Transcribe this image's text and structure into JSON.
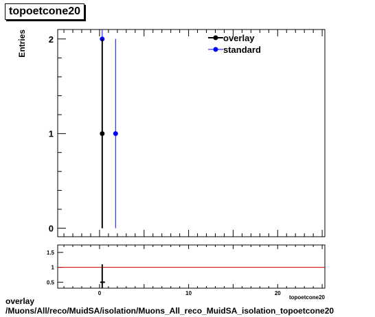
{
  "title": "topoetcone20",
  "footer": {
    "line1": "overlay",
    "line2": "/Muons/All/reco/MuidSA/isolation/Muons_All_reco_MuidSA_isolation_topoetcone20"
  },
  "colors": {
    "overlay": "#000000",
    "standard": "#0000ff",
    "ratio_line": "#cc0000"
  },
  "chart_data": [
    {
      "type": "scatter",
      "title": "topoetcone20",
      "ylabel": "Entries",
      "xlabel": "topoetcone20",
      "xlim": [
        -4.7,
        25.3
      ],
      "ylim": [
        -0.09,
        2.1
      ],
      "yticks": [
        0,
        1,
        2
      ],
      "grid": false,
      "legend": "top-right",
      "series": [
        {
          "name": "overlay",
          "color": "#000000",
          "marker_filled": true,
          "points": [
            {
              "x": 0.3,
              "y": 1,
              "err": 1
            }
          ]
        },
        {
          "name": "standard",
          "color": "#0000ff",
          "marker_filled": true,
          "points": [
            {
              "x": 0.3,
              "y": 2,
              "err": 1.41
            },
            {
              "x": 1.8,
              "y": 1,
              "err": 1
            }
          ]
        }
      ]
    },
    {
      "type": "scatter",
      "xlabel": "topoetcone20",
      "xlim": [
        -4.7,
        25.3
      ],
      "ylim": [
        0.3,
        1.75
      ],
      "xticks": [
        0,
        10,
        20
      ],
      "yticks": [
        0.5,
        1,
        1.5
      ],
      "reference_line": 1,
      "series": [
        {
          "points": [
            {
              "x": 0.3,
              "y": 0.5,
              "err": 0.6
            }
          ]
        }
      ]
    }
  ]
}
